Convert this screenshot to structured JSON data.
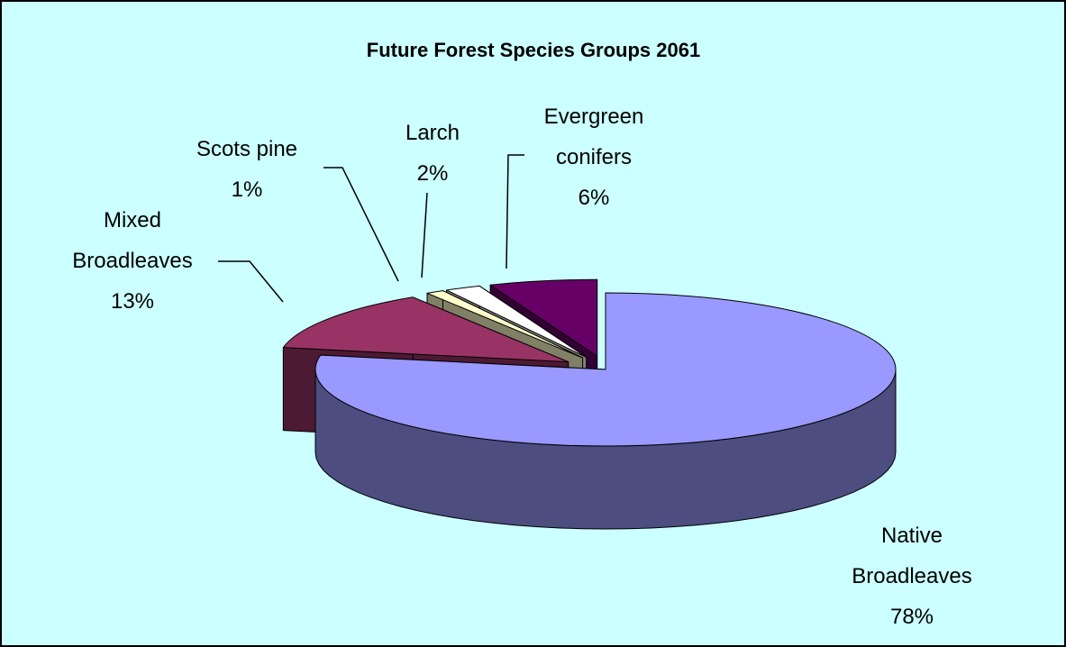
{
  "chart_data": {
    "type": "pie3d",
    "title": "Future Forest Species Groups 2061",
    "categories": [
      "Native Broadleaves",
      "Mixed Broadleaves",
      "Scots pine",
      "Larch",
      "Evergreen conifers"
    ],
    "values": [
      78,
      13,
      1,
      2,
      6
    ],
    "value_labels": [
      "78%",
      "13%",
      "1%",
      "2%",
      "6%"
    ],
    "colors": [
      "#9999ff",
      "#993366",
      "#ffffcc",
      "#ffffff",
      "#660066"
    ]
  }
}
